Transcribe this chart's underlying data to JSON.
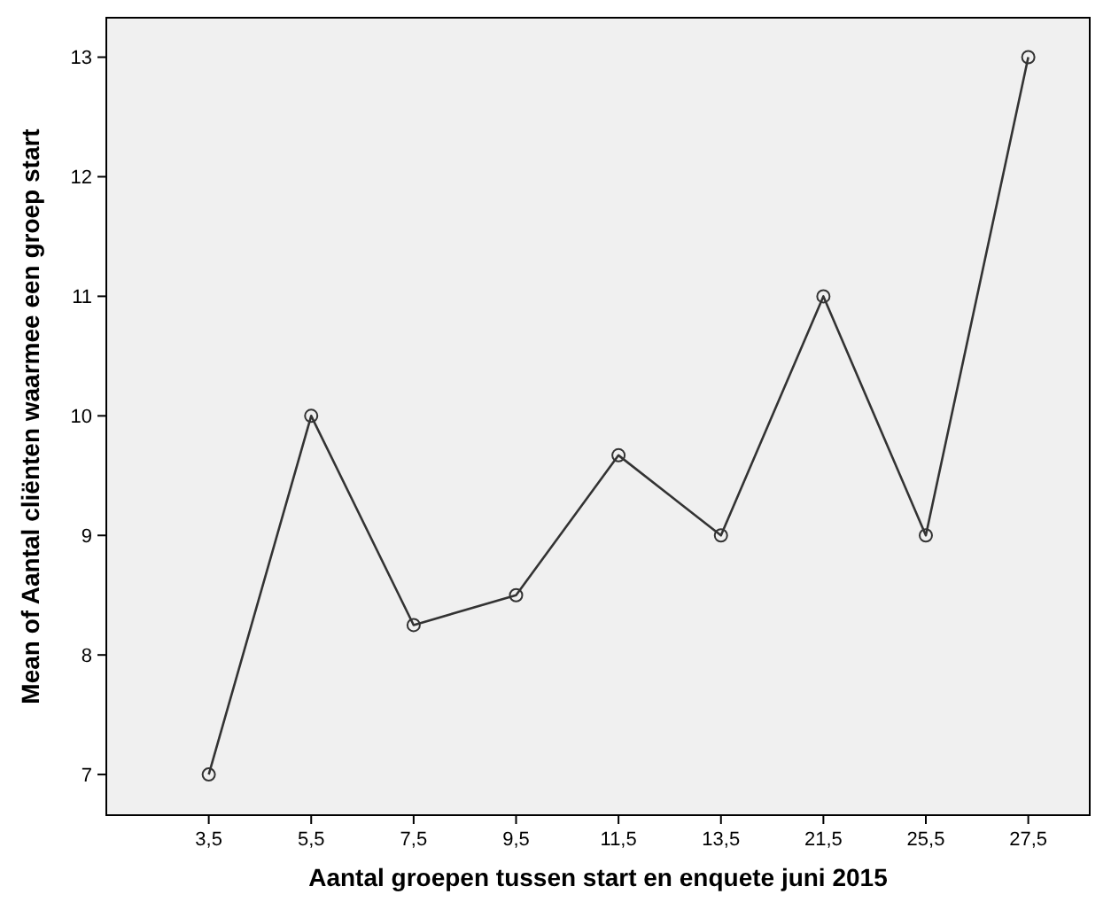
{
  "chart_data": {
    "type": "line",
    "xlabel": "Aantal groepen tussen start en enquete juni 2015",
    "ylabel": "Mean of Aantal cliënten waarmee een groep start",
    "categories": [
      "3,5",
      "5,5",
      "7,5",
      "9,5",
      "11,5",
      "13,5",
      "21,5",
      "25,5",
      "27,5"
    ],
    "series": [
      {
        "color": "#333333",
        "values": [
          7,
          10,
          8.25,
          8.5,
          9.67,
          9,
          11,
          9,
          13
        ]
      }
    ],
    "ylim": [
      6.66,
      13.33
    ],
    "yticks": [
      7,
      8,
      9,
      10,
      11,
      12,
      13
    ],
    "marker": "circle",
    "line_style": "solid"
  }
}
